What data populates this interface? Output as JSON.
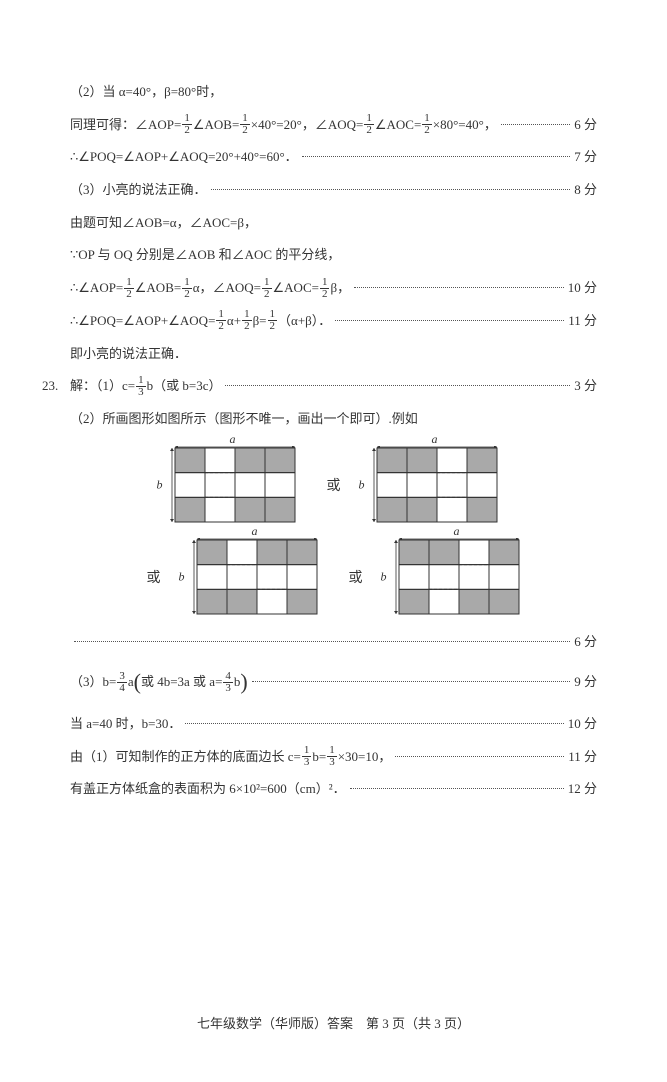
{
  "colors": {
    "text": "#333333",
    "shade": "#a9a9a9",
    "line": "#333333",
    "dash": "#555555",
    "bg": "#ffffff"
  },
  "p2": {
    "t1": "（2）当 α=40°，β=80°时，",
    "t2a": "同理可得：∠AOP=",
    "t2b": "∠AOB=",
    "t2c": "×40°=20°，∠AOQ=",
    "t2d": "∠AOC=",
    "t2e": "×80°=40°，",
    "s2": "6 分",
    "t3": "∴∠POQ=∠AOP+∠AOQ=20°+40°=60°．",
    "s3": "7 分"
  },
  "p3": {
    "t1": "（3）小亮的说法正确．",
    "s1": "8 分",
    "t2": "由题可知∠AOB=α，∠AOC=β，",
    "t3": "∵OP 与 OQ 分别是∠AOB 和∠AOC 的平分线，",
    "t4a": "∴∠AOP=",
    "t4b": "∠AOB=",
    "t4c": "α，∠AOQ=",
    "t4d": "∠AOC=",
    "t4e": "β，",
    "s4": "10 分",
    "t5a": "∴∠POQ=∠AOP+∠AOQ=",
    "t5b": "α+",
    "t5c": "β=",
    "t5d": "（α+β）．",
    "s5": "11 分",
    "t6": "即小亮的说法正确．"
  },
  "q23": {
    "num": "23.",
    "t1a": "解：（1）c=",
    "t1b": "b（或 b=3c）",
    "s1": "3 分",
    "t2": "（2）所画图形如图所示（图形不唯一，画出一个即可）.例如",
    "huo": "或",
    "a": "a",
    "b": "b",
    "s2": "6 分",
    "t3a": "（3）b=",
    "t3b": "a",
    "t3c": "或 4b=3a 或 a=",
    "t3d": "b",
    "s3": "9 分",
    "t4": "当 a=40 时，b=30．",
    "s4": "10 分",
    "t5a": "由（1）可知制作的正方体的底面边长 c=",
    "t5b": "b=",
    "t5c": "×30=10，",
    "s5": "11 分",
    "t6": "有盖正方体纸盒的表面积为 6×10²=600（cm）²．",
    "s6": "12 分"
  },
  "fracs": {
    "half": {
      "n": "1",
      "d": "2"
    },
    "third": {
      "n": "1",
      "d": "3"
    },
    "threequarter": {
      "n": "3",
      "d": "4"
    },
    "fourthird": {
      "n": "4",
      "d": "3"
    }
  },
  "figures": {
    "w": 128,
    "h": 78,
    "variants": [
      "A",
      "B",
      "C",
      "D"
    ]
  },
  "footer": "七年级数学（华师版）答案　第 3 页（共 3 页）"
}
